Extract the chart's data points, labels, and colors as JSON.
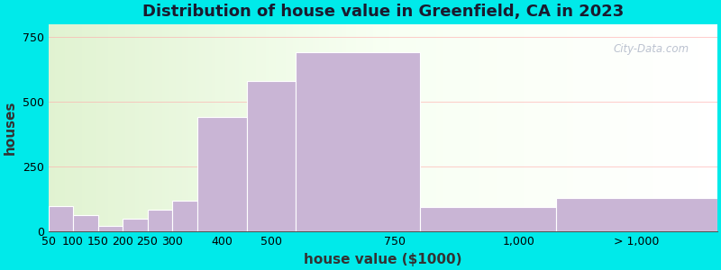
{
  "title": "Distribution of house value in Greenfield, CA in 2023",
  "xlabel": "house value ($1000)",
  "ylabel": "houses",
  "bar_labels": [
    "50",
    "100",
    "150",
    "200",
    "250",
    "300",
    "400",
    "500",
    "750",
    "1,000",
    "> 1,000"
  ],
  "bar_values": [
    100,
    65,
    22,
    50,
    85,
    120,
    440,
    580,
    690,
    95,
    130
  ],
  "bar_color": "#c9b5d5",
  "bar_edge_color": "#ffffff",
  "background_color": "#00eaea",
  "ylim": [
    0,
    800
  ],
  "yticks": [
    0,
    250,
    500,
    750
  ],
  "title_fontsize": 13,
  "axis_fontsize": 9,
  "watermark": "City-Data.com",
  "bar_lefts": [
    50,
    100,
    150,
    200,
    250,
    300,
    350,
    450,
    550,
    800,
    1075
  ],
  "bar_widths": [
    50,
    50,
    50,
    50,
    50,
    50,
    100,
    100,
    250,
    275,
    325
  ],
  "tick_positions": [
    50,
    100,
    150,
    200,
    250,
    300,
    400,
    500,
    750,
    1000,
    1237
  ],
  "xlim": [
    50,
    1400
  ]
}
